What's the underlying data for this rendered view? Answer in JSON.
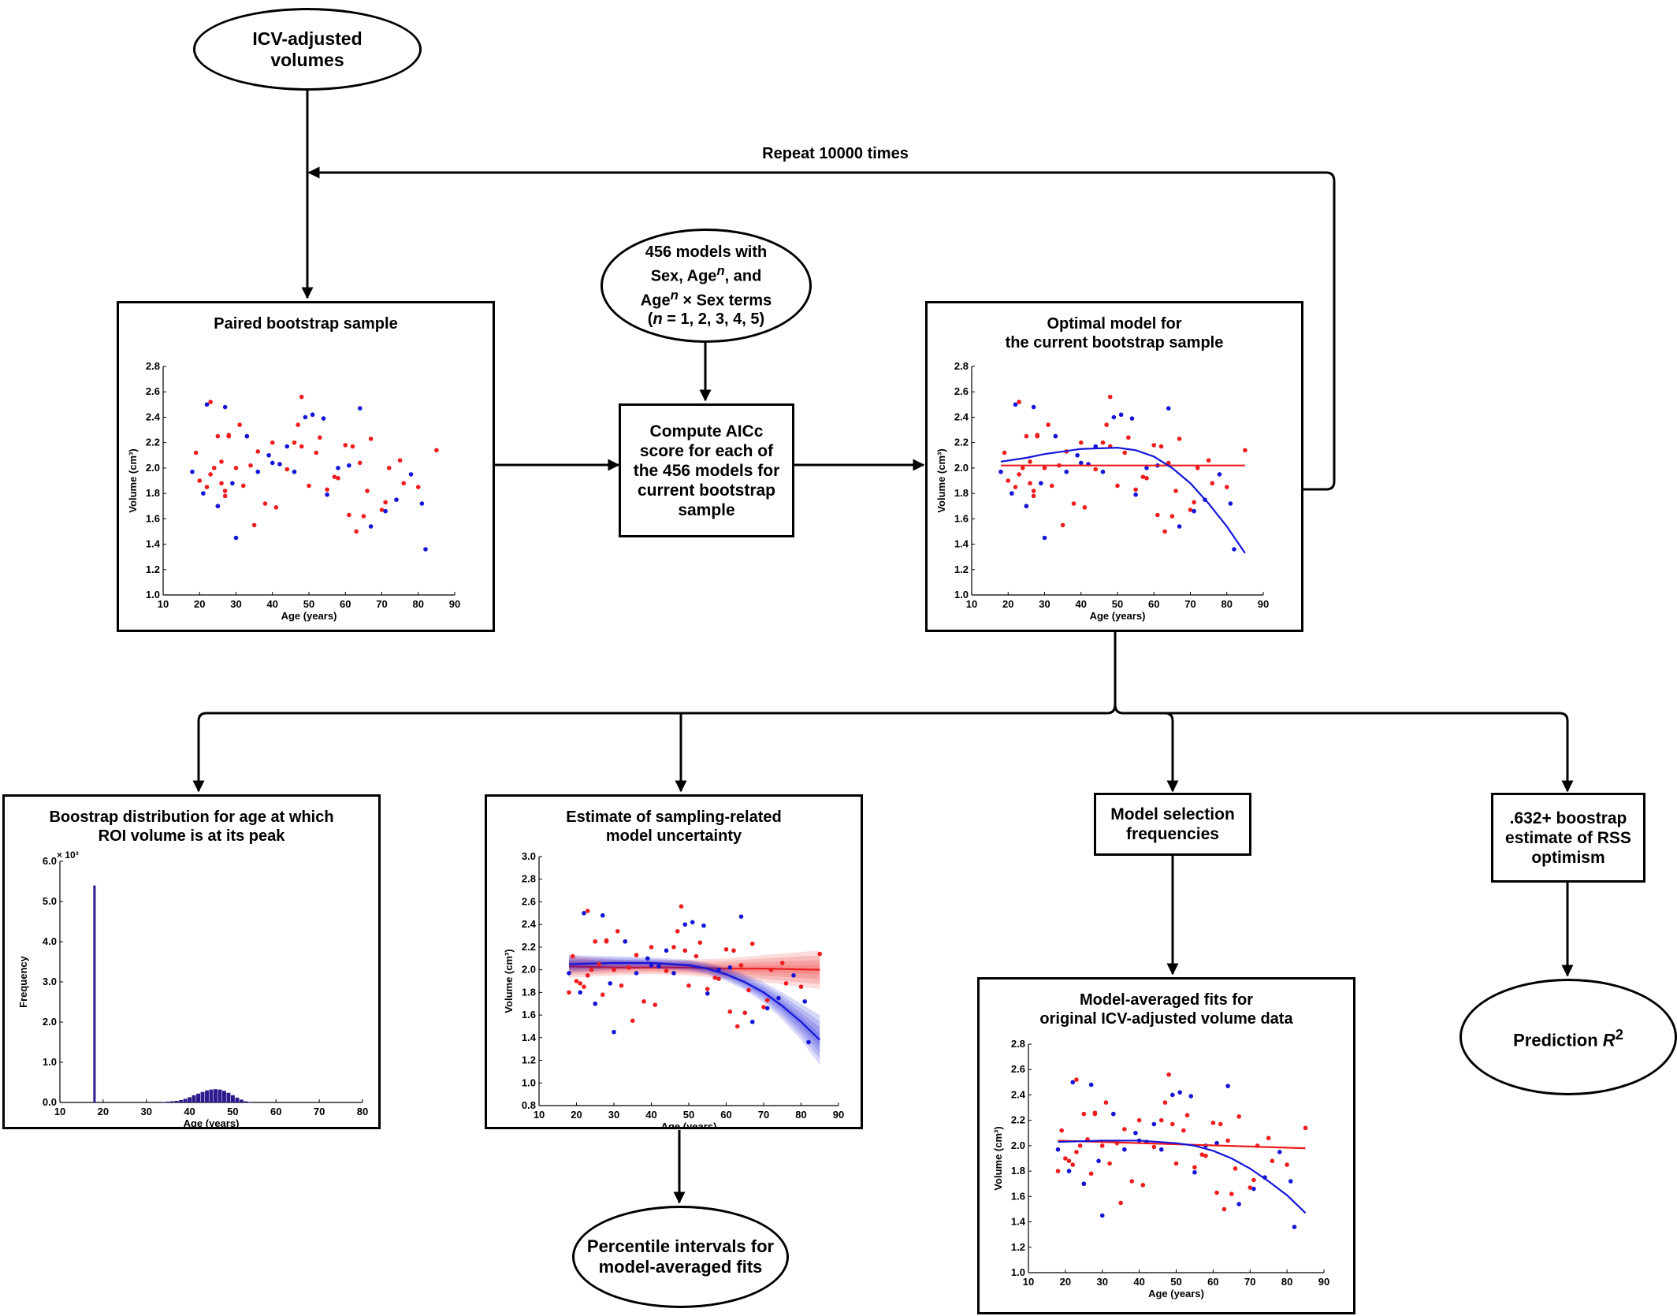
{
  "nodes": {
    "icv_volumes": "ICV-adjusted\nvolumes",
    "repeat_label": "Repeat 10000 times",
    "models": "456 models with\nSex, Age^n, and\nAge^n × Sex terms\n(n = 1, 2, 3, 4, 5)",
    "compute_aicc": "Compute AICc\nscore for each of\nthe 456 models for\ncurrent bootstrap\nsample",
    "paired_bootstrap": "Paired bootstrap sample",
    "optimal_model": "Optimal model for\nthe current bootstrap sample",
    "peak_distribution": "Boostrap distribution for age at which\nROI volume is at its peak",
    "uncertainty": "Estimate of sampling-related\nmodel uncertainty",
    "selection_freq": "Model selection\nfrequencies",
    "rss_optimism": ".632+ boostrap\nestimate of RSS\noptimism",
    "percentile": "Percentile intervals for\nmodel-averaged fits",
    "model_averaged": "Model-averaged fits for\noriginal ICV-adjusted volume data",
    "prediction": "Prediction R²"
  },
  "colors": {
    "red": "#ee1c1c",
    "blue": "#1414d8",
    "bar": "#2e1a8e"
  },
  "chart_data": [
    {
      "id": "paired",
      "type": "scatter",
      "title": "Paired bootstrap sample",
      "xlabel": "Age (years)",
      "ylabel": "Volume (cm³)",
      "xlim": [
        10,
        90
      ],
      "ylim": [
        1.0,
        2.8
      ],
      "xticks": [
        10,
        20,
        30,
        40,
        50,
        60,
        70,
        80,
        90
      ],
      "yticks": [
        1.0,
        1.2,
        1.4,
        1.6,
        1.8,
        2.0,
        2.2,
        2.4,
        2.6,
        2.8
      ],
      "series": [
        {
          "color": "red",
          "x": [
            19,
            20,
            22,
            23,
            23,
            24,
            25,
            25,
            26,
            26,
            27,
            27,
            28,
            28,
            30,
            31,
            32,
            33,
            34,
            35,
            36,
            38,
            40,
            41,
            42,
            44,
            46,
            47,
            48,
            48,
            50,
            52,
            53,
            55,
            57,
            58,
            60,
            61,
            62,
            63,
            64,
            65,
            66,
            67,
            70,
            71,
            72,
            75,
            76,
            80,
            85
          ],
          "y": [
            2.12,
            1.9,
            1.85,
            2.52,
            1.95,
            2.0,
            2.25,
            1.7,
            2.05,
            1.88,
            1.78,
            1.82,
            2.26,
            2.25,
            2.0,
            2.34,
            1.86,
            2.25,
            2.02,
            1.55,
            2.13,
            1.72,
            2.2,
            1.69,
            2.03,
            1.99,
            2.2,
            2.34,
            2.56,
            2.17,
            1.86,
            2.12,
            2.24,
            1.83,
            1.93,
            1.92,
            2.18,
            1.63,
            2.17,
            1.5,
            2.04,
            1.62,
            1.82,
            2.23,
            1.67,
            1.73,
            2.0,
            2.06,
            1.88,
            1.85,
            2.14
          ]
        },
        {
          "color": "blue",
          "x": [
            18,
            21,
            22,
            25,
            27,
            29,
            30,
            33,
            36,
            39,
            40,
            42,
            44,
            46,
            49,
            51,
            54,
            55,
            58,
            61,
            64,
            67,
            71,
            74,
            78,
            81,
            82
          ],
          "y": [
            1.97,
            1.8,
            2.5,
            1.7,
            2.48,
            1.88,
            1.45,
            2.25,
            1.97,
            2.1,
            2.04,
            2.03,
            2.17,
            1.97,
            2.4,
            2.42,
            2.39,
            1.79,
            2.0,
            2.02,
            2.47,
            1.54,
            1.66,
            1.75,
            1.95,
            1.72,
            1.36
          ]
        }
      ]
    },
    {
      "id": "optimal",
      "type": "scatter",
      "title": "Optimal model for the current bootstrap sample",
      "xlabel": "Age (years)",
      "ylabel": "Volume (cm³)",
      "xlim": [
        10,
        90
      ],
      "ylim": [
        1.0,
        2.8
      ],
      "xticks": [
        10,
        20,
        30,
        40,
        50,
        60,
        70,
        80,
        90
      ],
      "yticks": [
        1.0,
        1.2,
        1.4,
        1.6,
        1.8,
        2.0,
        2.2,
        2.4,
        2.6,
        2.8
      ],
      "series": [
        {
          "color": "red",
          "x": [
            19,
            20,
            22,
            23,
            23,
            24,
            25,
            25,
            26,
            26,
            27,
            27,
            28,
            28,
            30,
            31,
            32,
            33,
            34,
            35,
            36,
            38,
            40,
            41,
            42,
            44,
            46,
            47,
            48,
            48,
            50,
            52,
            53,
            55,
            57,
            58,
            60,
            61,
            62,
            63,
            64,
            65,
            66,
            67,
            70,
            71,
            72,
            75,
            76,
            80,
            85
          ],
          "y": [
            2.12,
            1.9,
            1.85,
            2.52,
            1.95,
            2.0,
            2.25,
            1.7,
            2.05,
            1.88,
            1.78,
            1.82,
            2.26,
            2.25,
            2.0,
            2.34,
            1.86,
            2.25,
            2.02,
            1.55,
            2.13,
            1.72,
            2.2,
            1.69,
            2.03,
            1.99,
            2.2,
            2.34,
            2.56,
            2.17,
            1.86,
            2.12,
            2.24,
            1.83,
            1.93,
            1.92,
            2.18,
            1.63,
            2.17,
            1.5,
            2.04,
            1.62,
            1.82,
            2.23,
            1.67,
            1.73,
            2.0,
            2.06,
            1.88,
            1.85,
            2.14
          ]
        },
        {
          "color": "blue",
          "x": [
            18,
            21,
            22,
            25,
            27,
            29,
            30,
            33,
            36,
            39,
            40,
            42,
            44,
            46,
            49,
            51,
            54,
            55,
            58,
            61,
            64,
            67,
            71,
            74,
            78,
            81,
            82
          ],
          "y": [
            1.97,
            1.8,
            2.5,
            1.7,
            2.48,
            1.88,
            1.45,
            2.25,
            1.97,
            2.1,
            2.04,
            2.03,
            2.17,
            1.97,
            2.4,
            2.42,
            2.39,
            1.79,
            2.0,
            2.02,
            2.47,
            1.54,
            1.66,
            1.75,
            1.95,
            1.72,
            1.36
          ]
        }
      ],
      "fits": [
        {
          "color": "red",
          "x": [
            18,
            85
          ],
          "y": [
            2.02,
            2.02
          ]
        },
        {
          "color": "blue",
          "x": [
            18,
            25,
            30,
            40,
            50,
            55,
            60,
            65,
            70,
            75,
            80,
            85
          ],
          "y": [
            2.05,
            2.08,
            2.11,
            2.15,
            2.16,
            2.14,
            2.09,
            2.0,
            1.88,
            1.72,
            1.54,
            1.33
          ]
        }
      ]
    },
    {
      "id": "peak",
      "type": "bar",
      "title": "Boostrap distribution for age at which ROI volume is at its peak",
      "xlabel": "Age (years)",
      "ylabel": "Frequency",
      "y_multiplier": "× 10³",
      "xlim": [
        10,
        80
      ],
      "ylim": [
        0,
        6.0
      ],
      "xticks": [
        10,
        20,
        30,
        40,
        50,
        60,
        70,
        80
      ],
      "yticks": [
        0.0,
        1.0,
        2.0,
        3.0,
        4.0,
        5.0,
        6.0
      ],
      "x": [
        18,
        34,
        35,
        36,
        37,
        38,
        39,
        40,
        41,
        42,
        43,
        44,
        45,
        46,
        47,
        48,
        49,
        50,
        51,
        52,
        53,
        54
      ],
      "values": [
        5.4,
        0.01,
        0.02,
        0.03,
        0.04,
        0.06,
        0.09,
        0.13,
        0.18,
        0.22,
        0.26,
        0.3,
        0.32,
        0.33,
        0.32,
        0.29,
        0.24,
        0.18,
        0.12,
        0.07,
        0.03,
        0.01
      ]
    },
    {
      "id": "uncertainty",
      "type": "scatter",
      "title": "Estimate of sampling-related model uncertainty",
      "xlabel": "Age (years)",
      "ylabel": "Volume (cm³)",
      "xlim": [
        10,
        90
      ],
      "ylim": [
        0.8,
        3.0
      ],
      "xticks": [
        10,
        20,
        30,
        40,
        50,
        60,
        70,
        80,
        90
      ],
      "yticks": [
        0.8,
        1.0,
        1.2,
        1.4,
        1.6,
        1.8,
        2.0,
        2.2,
        2.4,
        2.6,
        2.8,
        3.0
      ],
      "series": [
        {
          "color": "red",
          "x": [
            18,
            19,
            20,
            21,
            22,
            23,
            23,
            24,
            25,
            25,
            26,
            27,
            28,
            28,
            30,
            31,
            32,
            33,
            34,
            35,
            36,
            38,
            40,
            41,
            42,
            44,
            46,
            47,
            48,
            49,
            50,
            52,
            53,
            55,
            57,
            58,
            60,
            61,
            62,
            63,
            64,
            65,
            66,
            67,
            70,
            71,
            72,
            75,
            76,
            80,
            85
          ],
          "y": [
            1.8,
            2.12,
            1.9,
            1.88,
            1.85,
            2.52,
            1.95,
            2.0,
            2.25,
            1.7,
            2.05,
            1.78,
            2.26,
            2.25,
            2.0,
            2.34,
            1.86,
            2.25,
            2.02,
            1.55,
            2.13,
            1.72,
            2.2,
            1.69,
            2.03,
            1.99,
            2.2,
            2.34,
            2.56,
            2.17,
            1.86,
            2.12,
            2.24,
            1.83,
            1.93,
            1.92,
            2.18,
            1.63,
            2.17,
            1.5,
            2.04,
            1.62,
            1.82,
            2.23,
            1.67,
            1.73,
            2.0,
            2.06,
            1.88,
            1.85,
            2.14
          ]
        },
        {
          "color": "blue",
          "x": [
            18,
            21,
            22,
            25,
            27,
            29,
            30,
            33,
            36,
            39,
            40,
            42,
            44,
            46,
            49,
            51,
            54,
            55,
            58,
            61,
            64,
            67,
            71,
            74,
            78,
            81,
            82
          ],
          "y": [
            1.97,
            1.8,
            2.5,
            1.7,
            2.48,
            1.88,
            1.45,
            2.25,
            1.97,
            2.1,
            2.04,
            2.03,
            2.17,
            1.97,
            2.4,
            2.42,
            2.39,
            1.79,
            2.0,
            2.02,
            2.47,
            1.54,
            1.66,
            1.75,
            1.95,
            1.72,
            1.36
          ]
        }
      ],
      "bands": [
        {
          "color": "red",
          "x": [
            18,
            30,
            40,
            50,
            60,
            70,
            85
          ],
          "y": [
            2.03,
            2.02,
            2.02,
            2.02,
            2.01,
            2.01,
            2.0
          ],
          "spread": [
            0.1,
            0.07,
            0.06,
            0.07,
            0.09,
            0.12,
            0.17
          ]
        },
        {
          "color": "blue",
          "x": [
            18,
            30,
            40,
            50,
            55,
            60,
            65,
            70,
            75,
            80,
            85
          ],
          "y": [
            2.05,
            2.06,
            2.06,
            2.04,
            2.01,
            1.96,
            1.89,
            1.8,
            1.68,
            1.54,
            1.38
          ],
          "spread": [
            0.08,
            0.06,
            0.05,
            0.05,
            0.05,
            0.06,
            0.07,
            0.09,
            0.12,
            0.16,
            0.22
          ]
        }
      ]
    },
    {
      "id": "averaged",
      "type": "scatter",
      "title": "Model-averaged fits for original ICV-adjusted volume data",
      "xlabel": "Age (years)",
      "ylabel": "Volume (cm³)",
      "xlim": [
        10,
        90
      ],
      "ylim": [
        1.0,
        2.8
      ],
      "xticks": [
        10,
        20,
        30,
        40,
        50,
        60,
        70,
        80,
        90
      ],
      "yticks": [
        1.0,
        1.2,
        1.4,
        1.6,
        1.8,
        2.0,
        2.2,
        2.4,
        2.6,
        2.8
      ],
      "series": [
        {
          "color": "red",
          "x": [
            18,
            19,
            20,
            21,
            22,
            23,
            23,
            24,
            25,
            25,
            26,
            27,
            28,
            28,
            30,
            31,
            32,
            33,
            34,
            35,
            36,
            38,
            40,
            41,
            42,
            44,
            46,
            47,
            48,
            49,
            50,
            52,
            53,
            55,
            57,
            58,
            60,
            61,
            62,
            63,
            64,
            65,
            66,
            67,
            70,
            71,
            72,
            75,
            76,
            80,
            85
          ],
          "y": [
            1.8,
            2.12,
            1.9,
            1.88,
            1.85,
            2.52,
            1.95,
            2.0,
            2.25,
            1.7,
            2.05,
            1.78,
            2.26,
            2.25,
            2.0,
            2.34,
            1.86,
            2.25,
            2.02,
            1.55,
            2.13,
            1.72,
            2.2,
            1.69,
            2.03,
            1.99,
            2.2,
            2.34,
            2.56,
            2.17,
            1.86,
            2.12,
            2.24,
            1.83,
            1.93,
            1.92,
            2.18,
            1.63,
            2.17,
            1.5,
            2.04,
            1.62,
            1.82,
            2.23,
            1.67,
            1.73,
            2.0,
            2.06,
            1.88,
            1.85,
            2.14
          ]
        },
        {
          "color": "blue",
          "x": [
            18,
            21,
            22,
            25,
            27,
            29,
            30,
            33,
            36,
            39,
            40,
            42,
            44,
            46,
            49,
            51,
            54,
            55,
            58,
            61,
            64,
            67,
            71,
            74,
            78,
            81,
            82
          ],
          "y": [
            1.97,
            1.8,
            2.5,
            1.7,
            2.48,
            1.88,
            1.45,
            2.25,
            1.97,
            2.1,
            2.04,
            2.03,
            2.17,
            1.97,
            2.4,
            2.42,
            2.39,
            1.79,
            2.0,
            2.02,
            2.47,
            1.54,
            1.66,
            1.75,
            1.95,
            1.72,
            1.36
          ]
        }
      ],
      "fits": [
        {
          "color": "red",
          "x": [
            18,
            85
          ],
          "y": [
            2.04,
            1.98
          ]
        },
        {
          "color": "blue",
          "x": [
            18,
            30,
            40,
            50,
            55,
            60,
            65,
            70,
            75,
            80,
            85
          ],
          "y": [
            2.03,
            2.04,
            2.04,
            2.02,
            2.0,
            1.96,
            1.9,
            1.82,
            1.72,
            1.61,
            1.47
          ]
        }
      ]
    }
  ]
}
